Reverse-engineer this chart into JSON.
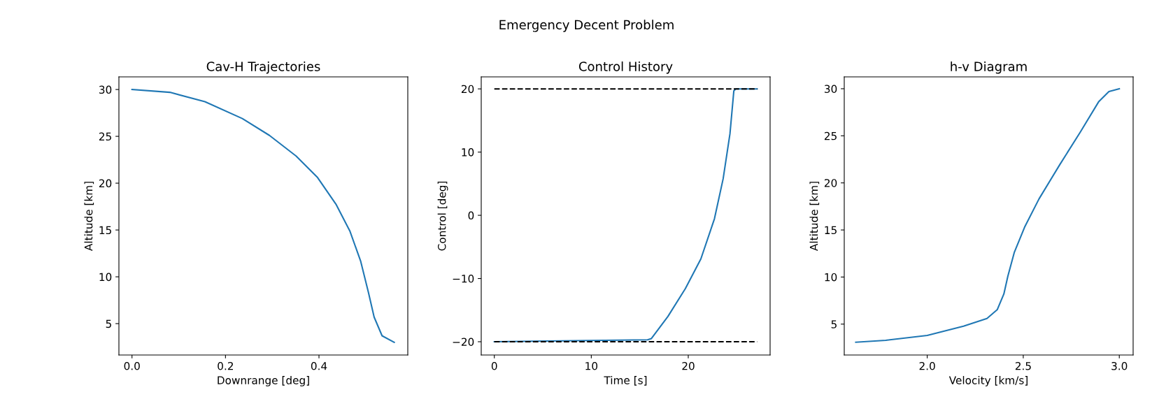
{
  "chart_data": [
    {
      "type": "line",
      "title": "Cav-H Trajectories",
      "annotations": [
        "Emergency Decent Problem"
      ],
      "xlabel": "Downrange [deg]",
      "ylabel": "Altitude [km]",
      "x": [
        0,
        0.081,
        0.156,
        0.236,
        0.294,
        0.351,
        0.397,
        0.437,
        0.466,
        0.489,
        0.506,
        0.518,
        0.535,
        0.561
      ],
      "series": [
        {
          "color": "#1f77b4",
          "values": [
            30,
            29.7,
            28.7,
            26.9,
            25.1,
            22.9,
            20.6,
            17.7,
            14.9,
            11.7,
            8.3,
            5.7,
            3.7,
            3.0
          ]
        }
      ],
      "xlim": [
        -0.028,
        0.59
      ],
      "ylim": [
        1.65,
        31.35
      ],
      "xticks": [
        {
          "value": 0,
          "label": "0.0"
        },
        0.2,
        0.4
      ],
      "yticks": [
        5,
        10,
        15,
        20,
        25,
        30
      ],
      "grid": false,
      "legend": false
    },
    {
      "type": "line",
      "title": "Control History",
      "xlabel": "Time [s]",
      "ylabel": "Control [deg]",
      "x": [
        0,
        15.8,
        16.2,
        17.9,
        19.7,
        21.3,
        22.7,
        23.6,
        24.3,
        24.7,
        24.9,
        27.1
      ],
      "series": [
        {
          "color": "#1f77b4",
          "values": [
            -20,
            -19.7,
            -19.5,
            -16,
            -11.6,
            -6.9,
            -0.55,
            5.8,
            12.9,
            19.7,
            20,
            20
          ]
        }
      ],
      "ref_lines": [
        {
          "axis": "y",
          "value": 20,
          "color": "#000000",
          "line_style": "dashed"
        },
        {
          "axis": "y",
          "value": -20,
          "color": "#000000",
          "line_style": "dashed"
        }
      ],
      "xlim": [
        -1.35,
        28.44
      ],
      "ylim": [
        -22.1,
        21.9
      ],
      "xticks": [
        0,
        10,
        20
      ],
      "yticks": [
        {
          "value": -20,
          "label": "−20"
        },
        {
          "value": -10,
          "label": "−10"
        },
        0,
        10,
        20
      ],
      "grid": false,
      "legend": false
    },
    {
      "type": "line",
      "title": "h-v Diagram",
      "xlabel": "Velocity [km/s]",
      "ylabel": "Altitude [km]",
      "x": [
        1.628,
        1.784,
        2.0,
        2.189,
        2.311,
        2.365,
        2.399,
        2.42,
        2.453,
        2.507,
        2.582,
        2.689,
        2.797,
        2.892,
        2.946,
        3.0
      ],
      "series": [
        {
          "color": "#1f77b4",
          "values": [
            3.08,
            3.28,
            3.8,
            4.78,
            5.6,
            6.55,
            8.2,
            10.1,
            12.6,
            15.3,
            18.3,
            21.9,
            25.4,
            28.6,
            29.7,
            30
          ]
        }
      ],
      "xlim": [
        1.568,
        3.072
      ],
      "ylim": [
        1.72,
        31.26
      ],
      "xticks": [
        {
          "value": 2.0,
          "label": "2.0"
        },
        2.5,
        {
          "value": 3.0,
          "label": "3.0"
        }
      ],
      "yticks": [
        5,
        10,
        15,
        20,
        25,
        30
      ],
      "grid": false,
      "legend": false
    }
  ]
}
